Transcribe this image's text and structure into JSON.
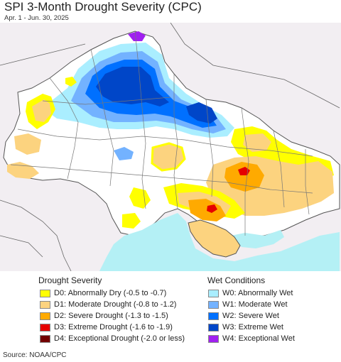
{
  "header": {
    "title": "SPI 3-Month Drought Severity (CPC)",
    "date_range": "Apr. 1 - Jun. 30, 2025"
  },
  "legend": {
    "drought_heading": "Drought Severity",
    "wet_heading": "Wet Conditions",
    "drought_items": [
      {
        "label": "D0: Abnormally Dry (-0.5 to -0.7)",
        "color": "#ffff00"
      },
      {
        "label": "D1: Moderate Drought (-0.8 to -1.2)",
        "color": "#fcd37f"
      },
      {
        "label": "D2: Severe Drought (-1.3 to -1.5)",
        "color": "#ffaa00"
      },
      {
        "label": "D3: Extreme Drought (-1.6 to -1.9)",
        "color": "#e60000"
      },
      {
        "label": "D4: Exceptional Drought (-2.0 or less)",
        "color": "#730000"
      }
    ],
    "wet_items": [
      {
        "label": "W0: Abnormally Wet",
        "color": "#aaeeff"
      },
      {
        "label": "W1: Moderate Wet",
        "color": "#73b2ff"
      },
      {
        "label": "W2: Severe Wet",
        "color": "#0070ff"
      },
      {
        "label": "W3: Extreme Wet",
        "color": "#0046c8"
      },
      {
        "label": "W4: Exceptional Wet",
        "color": "#a020f0"
      }
    ]
  },
  "footer": {
    "source": "Source: NOAA/CPC"
  },
  "map": {
    "land_color": "#ffffff",
    "outside_region_color": "#f2eef2",
    "sea_color": "#b4f0f5",
    "border_color": "#666666"
  }
}
